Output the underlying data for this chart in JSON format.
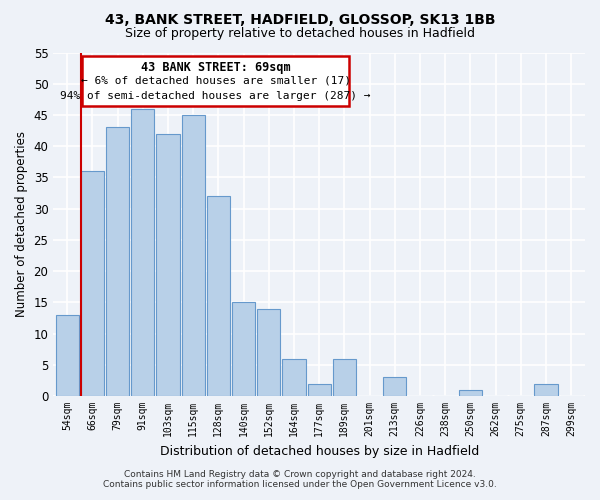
{
  "title": "43, BANK STREET, HADFIELD, GLOSSOP, SK13 1BB",
  "subtitle": "Size of property relative to detached houses in Hadfield",
  "xlabel": "Distribution of detached houses by size in Hadfield",
  "ylabel": "Number of detached properties",
  "bar_labels": [
    "54sqm",
    "66sqm",
    "79sqm",
    "91sqm",
    "103sqm",
    "115sqm",
    "128sqm",
    "140sqm",
    "152sqm",
    "164sqm",
    "177sqm",
    "189sqm",
    "201sqm",
    "213sqm",
    "226sqm",
    "238sqm",
    "250sqm",
    "262sqm",
    "275sqm",
    "287sqm",
    "299sqm"
  ],
  "bar_values": [
    13,
    36,
    43,
    46,
    42,
    45,
    32,
    15,
    14,
    6,
    2,
    6,
    0,
    3,
    0,
    0,
    1,
    0,
    0,
    2,
    0
  ],
  "highlight_index": 1,
  "bar_color": "#b8d0e8",
  "bar_edge_color": "#6699cc",
  "highlight_color": "#cc0000",
  "ylim": [
    0,
    55
  ],
  "yticks": [
    0,
    5,
    10,
    15,
    20,
    25,
    30,
    35,
    40,
    45,
    50,
    55
  ],
  "annotation_title": "43 BANK STREET: 69sqm",
  "annotation_line1": "← 6% of detached houses are smaller (17)",
  "annotation_line2": "94% of semi-detached houses are larger (287) →",
  "footer_line1": "Contains HM Land Registry data © Crown copyright and database right 2024.",
  "footer_line2": "Contains public sector information licensed under the Open Government Licence v3.0.",
  "background_color": "#eef2f8",
  "plot_background": "#eef2f8",
  "grid_color": "#ffffff"
}
